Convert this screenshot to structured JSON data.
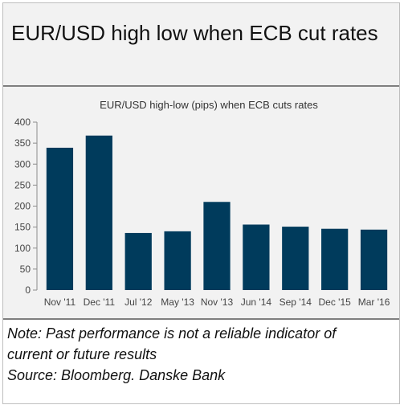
{
  "header": {
    "title": "EUR/USD high low when ECB cut rates"
  },
  "chart_data": {
    "type": "bar",
    "title": "EUR/USD high-low (pips) when ECB cuts rates",
    "xlabel": "",
    "ylabel": "",
    "categories": [
      "Nov '11",
      "Dec '11",
      "Jul '12",
      "May '13",
      "Nov '13",
      "Jun '14",
      "Sep '14",
      "Dec '15",
      "Mar '16"
    ],
    "values": [
      339,
      368,
      136,
      140,
      210,
      156,
      151,
      146,
      144
    ],
    "ylim": [
      0,
      400
    ],
    "yticks": [
      0,
      50,
      100,
      150,
      200,
      250,
      300,
      350,
      400
    ],
    "bar_color": "#003b5c",
    "grid": false,
    "legend": "none"
  },
  "notes": {
    "line1": "Note: Past performance is not a reliable indicator of",
    "line2": "current or future results",
    "source": "Source: Bloomberg. Danske Bank"
  }
}
